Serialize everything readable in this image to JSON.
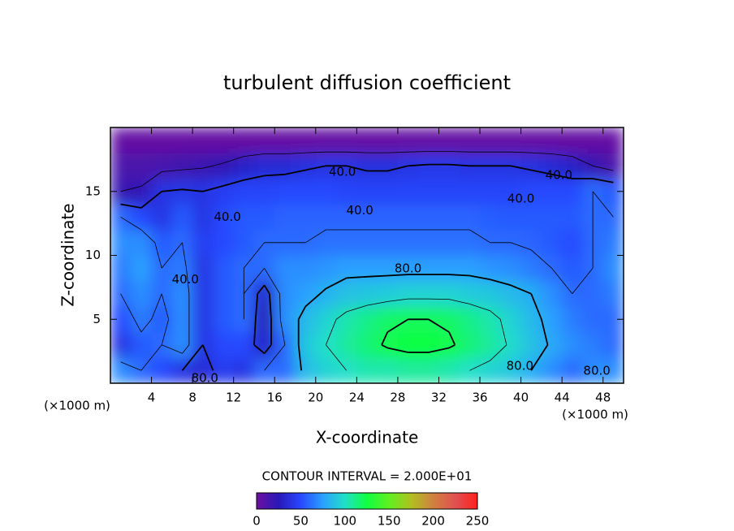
{
  "chart_data": {
    "type": "contour",
    "title": "turbulent diffusion coefficient",
    "x_label": "X-coordinate",
    "y_label": "Z-coordinate",
    "x_unit": "(×1000 m)",
    "contour_interval_label": "CONTOUR INTERVAL = 2.000E+01",
    "contour_interval": 20,
    "xlim": [
      0,
      50
    ],
    "xticks": [
      4,
      8,
      12,
      16,
      20,
      24,
      28,
      32,
      36,
      40,
      44,
      48
    ],
    "ylim": [
      0,
      20
    ],
    "yticks": [
      5,
      10,
      15
    ],
    "x": [
      1,
      3,
      5,
      7,
      9,
      11,
      13,
      15,
      17,
      19,
      21,
      23,
      25,
      27,
      29,
      31,
      33,
      35,
      37,
      39,
      41,
      43,
      45,
      47,
      49
    ],
    "y": [
      1,
      3,
      5,
      7,
      9,
      11,
      13,
      15,
      17,
      19
    ],
    "z": [
      [
        70,
        60,
        50,
        40,
        35,
        45,
        40,
        60,
        60,
        85,
        95,
        100,
        105,
        105,
        108,
        108,
        105,
        100,
        95,
        90,
        80,
        70,
        60,
        70,
        70
      ],
      [
        40,
        55,
        60,
        70,
        40,
        50,
        50,
        30,
        60,
        90,
        100,
        108,
        115,
        122,
        125,
        125,
        122,
        115,
        108,
        98,
        88,
        78,
        70,
        65,
        60
      ],
      [
        50,
        65,
        55,
        70,
        40,
        55,
        60,
        25,
        70,
        85,
        95,
        105,
        112,
        118,
        120,
        120,
        118,
        112,
        105,
        95,
        85,
        75,
        65,
        60,
        60
      ],
      [
        60,
        70,
        60,
        70,
        40,
        55,
        60,
        30,
        70,
        75,
        82,
        88,
        90,
        92,
        95,
        95,
        95,
        92,
        90,
        85,
        80,
        70,
        60,
        60,
        65
      ],
      [
        65,
        75,
        60,
        65,
        40,
        55,
        60,
        60,
        70,
        70,
        72,
        75,
        75,
        75,
        75,
        75,
        75,
        75,
        72,
        70,
        65,
        60,
        55,
        60,
        70
      ],
      [
        70,
        70,
        55,
        60,
        45,
        50,
        55,
        60,
        60,
        60,
        62,
        62,
        62,
        62,
        62,
        62,
        62,
        62,
        60,
        60,
        58,
        55,
        50,
        60,
        65
      ],
      [
        60,
        50,
        40,
        55,
        40,
        50,
        55,
        55,
        58,
        58,
        58,
        58,
        58,
        58,
        58,
        58,
        58,
        58,
        56,
        55,
        55,
        55,
        55,
        60,
        60
      ],
      [
        20,
        22,
        40,
        42,
        40,
        45,
        48,
        48,
        50,
        50,
        50,
        48,
        48,
        48,
        48,
        48,
        48,
        48,
        48,
        48,
        50,
        50,
        50,
        60,
        55
      ],
      [
        12,
        12,
        14,
        16,
        18,
        22,
        30,
        35,
        35,
        38,
        40,
        40,
        38,
        38,
        40,
        42,
        42,
        40,
        40,
        40,
        38,
        35,
        30,
        20,
        12
      ],
      [
        3,
        3,
        3,
        3,
        3,
        3,
        3,
        3,
        3,
        3,
        3,
        3,
        3,
        3,
        3,
        3,
        3,
        3,
        3,
        3,
        3,
        3,
        3,
        3,
        3
      ]
    ],
    "colormap": [
      "#6c10a0",
      "#2818b8",
      "#2848ff",
      "#2aa0ff",
      "#20e0c8",
      "#10ff40",
      "#60f020",
      "#b0c020",
      "#d08040",
      "#e05050",
      "#ff2020"
    ],
    "colorbar": {
      "lim": [
        0,
        250
      ],
      "ticks": [
        0,
        50,
        100,
        150,
        200,
        250
      ]
    },
    "contour_labels": [
      {
        "x": 22.6,
        "y": 16.5,
        "value": 40,
        "label": "40.0"
      },
      {
        "x": 43.7,
        "y": 16.25,
        "value": 40,
        "label": "40.0"
      },
      {
        "x": 40,
        "y": 14.4,
        "value": 40,
        "label": "40.0"
      },
      {
        "x": 24.3,
        "y": 13.5,
        "value": 40,
        "label": "40.0"
      },
      {
        "x": 11.4,
        "y": 13,
        "value": 40,
        "label": "40.0"
      },
      {
        "x": 7.3,
        "y": 8.1,
        "value": 40,
        "label": "40.0"
      },
      {
        "x": 29,
        "y": 8.95,
        "value": 80,
        "label": "80.0"
      },
      {
        "x": 39.9,
        "y": 1.33,
        "value": 80,
        "label": "80.0"
      },
      {
        "x": 47.4,
        "y": 0.95,
        "value": 80,
        "label": "80.0"
      },
      {
        "x": 9.2,
        "y": 0.38,
        "value": 80,
        "label": "80.0"
      }
    ]
  }
}
